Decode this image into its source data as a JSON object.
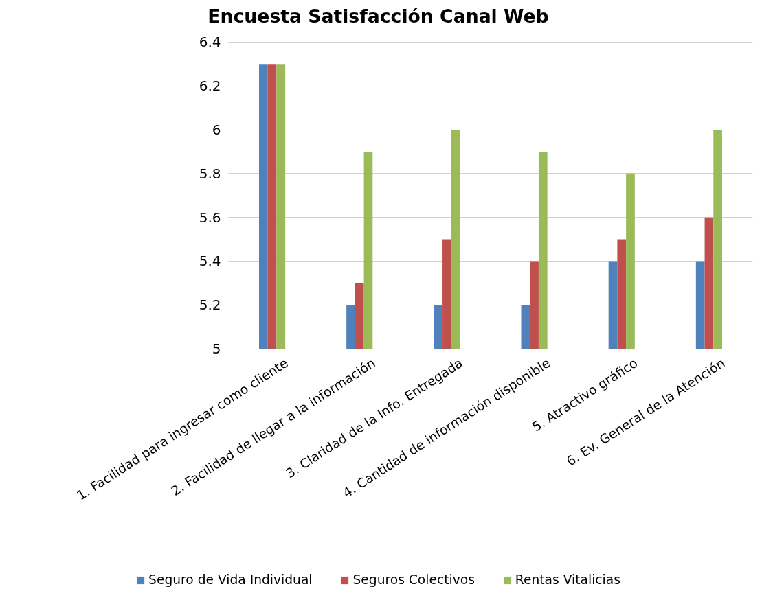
{
  "chart_data": {
    "type": "bar",
    "title": "Encuesta Satisfacción Canal Web",
    "categories": [
      "1. Facilidad para ingresar como cliente",
      "2. Facilidad de llegar a la información",
      "3. Claridad de la Info. Entregada",
      "4. Cantidad de información disponible",
      "5. Atractivo gráfico",
      "6. Ev. General de la Atención"
    ],
    "series": [
      {
        "name": "Seguro de Vida Individual",
        "color": "#4f81bd",
        "values": [
          6.3,
          5.2,
          5.2,
          5.2,
          5.4,
          5.4
        ]
      },
      {
        "name": "Seguros Colectivos",
        "color": "#c0504d",
        "values": [
          6.3,
          5.3,
          5.5,
          5.4,
          5.5,
          5.6
        ]
      },
      {
        "name": "Rentas Vitalicias",
        "color": "#9bbb59",
        "values": [
          6.3,
          5.9,
          6.0,
          5.9,
          5.8,
          6.0
        ]
      }
    ],
    "ylim": [
      5,
      6.4
    ],
    "yticks": [
      5,
      5.2,
      5.4,
      5.6,
      5.8,
      6,
      6.2,
      6.4
    ],
    "grid": "y",
    "legend": "bottom"
  }
}
